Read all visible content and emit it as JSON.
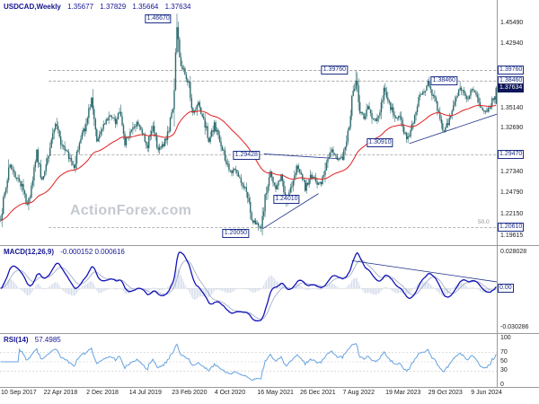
{
  "watermark": "ActionForex.com",
  "colors": {
    "candle": "#2e6b6f",
    "ma": "#e02020",
    "macd": "#1414b8",
    "macd_signal": "#9aa6c6",
    "macd_hist": "#ccd6e6",
    "rsi": "#66a3e0",
    "annotation": "#1c2f86",
    "price_box_bg": "#0d1559",
    "watermark": "#c5c9d1",
    "separator": "#999999",
    "dash": "#8c8c8c",
    "guide": "#c9c9c9",
    "text": "#222222",
    "header": "#161694"
  },
  "chart_data": {
    "type": "candlestick",
    "symbol": "USDCAD,Weekly",
    "ohlc": {
      "open": "1.35677",
      "high": "1.37829",
      "low": "1.35664",
      "close": "1.37634"
    },
    "x_axis": {
      "labels": [
        "10 Sep 2017",
        "22 Apr 2018",
        "2 Dec 2018",
        "14 Jul 2019",
        "23 Feb 2020",
        "4 Oct 2020",
        "16 May 2021",
        "26 Dec 2021",
        "7 Aug 2022",
        "19 Mar 2023",
        "29 Oct 2023",
        "9 Jun 2024"
      ],
      "week_step": 32,
      "weeks_total": 372
    },
    "price_panel": {
      "ylim": [
        1.188,
        1.468
      ],
      "ticks": [
        "1.45490",
        "1.42940",
        "1.35140",
        "1.32690",
        "1.27340",
        "1.24790",
        "1.22150",
        "1.19615"
      ],
      "levels": [
        {
          "price": 1.3976,
          "label": "1.39760"
        },
        {
          "price": 1.3846,
          "label": "1.38460"
        },
        {
          "price": 1.2947,
          "label": "1.29470"
        },
        {
          "price": 1.2061,
          "label": "1.20610",
          "note": "50.0"
        }
      ],
      "level_start_week": 36,
      "current": {
        "price": 1.37634,
        "label": "1.37634"
      },
      "annotations": [
        {
          "week": 118,
          "price": 1.46,
          "text": "1.46670"
        },
        {
          "week": 250,
          "price": 1.3976,
          "text": "1.39760"
        },
        {
          "week": 332,
          "price": 1.3846,
          "text": "1.38460"
        },
        {
          "week": 184,
          "price": 1.2945,
          "text": "1.29428"
        },
        {
          "week": 284,
          "price": 1.3091,
          "text": "1.30910"
        },
        {
          "week": 214,
          "price": 1.2401,
          "text": "1.24010"
        },
        {
          "week": 176,
          "price": 1.1985,
          "text": "1.20050"
        }
      ],
      "trendlines": [
        [
          196,
          1.2045,
          238,
          1.2475
        ],
        [
          197,
          1.2958,
          253,
          1.29
        ],
        [
          306,
          1.3085,
          372,
          1.3445
        ]
      ],
      "ma_period": 60,
      "seed": 20,
      "pins": [
        {
          "week": 132,
          "high": 1.4667
        },
        {
          "week": 195,
          "low": 1.2005
        },
        {
          "week": 266,
          "high": 1.3977
        },
        {
          "week": 305,
          "low": 1.3091
        },
        {
          "week": 344,
          "high": 1.3846
        },
        {
          "week": 363,
          "low": 1.344
        }
      ],
      "price_path": [
        [
          0,
          1.216
        ],
        [
          3,
          1.248
        ],
        [
          7,
          1.283
        ],
        [
          11,
          1.27
        ],
        [
          16,
          1.257
        ],
        [
          20,
          1.231
        ],
        [
          24,
          1.26
        ],
        [
          27,
          1.299
        ],
        [
          31,
          1.262
        ],
        [
          36,
          1.297
        ],
        [
          41,
          1.332
        ],
        [
          46,
          1.306
        ],
        [
          51,
          1.291
        ],
        [
          55,
          1.281
        ],
        [
          60,
          1.318
        ],
        [
          64,
          1.331
        ],
        [
          68,
          1.363
        ],
        [
          72,
          1.314
        ],
        [
          77,
          1.33
        ],
        [
          82,
          1.342
        ],
        [
          86,
          1.335
        ],
        [
          89,
          1.351
        ],
        [
          93,
          1.309
        ],
        [
          98,
          1.326
        ],
        [
          102,
          1.334
        ],
        [
          106,
          1.322
        ],
        [
          110,
          1.306
        ],
        [
          114,
          1.329
        ],
        [
          118,
          1.3
        ],
        [
          122,
          1.307
        ],
        [
          126,
          1.324
        ],
        [
          129,
          1.352
        ],
        [
          132,
          1.452
        ],
        [
          134,
          1.41
        ],
        [
          137,
          1.398
        ],
        [
          141,
          1.38
        ],
        [
          144,
          1.343
        ],
        [
          148,
          1.357
        ],
        [
          152,
          1.34
        ],
        [
          156,
          1.311
        ],
        [
          160,
          1.331
        ],
        [
          164,
          1.313
        ],
        [
          168,
          1.291
        ],
        [
          172,
          1.274
        ],
        [
          176,
          1.276
        ],
        [
          180,
          1.263
        ],
        [
          184,
          1.251
        ],
        [
          188,
          1.214
        ],
        [
          192,
          1.211
        ],
        [
          195,
          1.206
        ],
        [
          198,
          1.246
        ],
        [
          202,
          1.275
        ],
        [
          206,
          1.253
        ],
        [
          210,
          1.268
        ],
        [
          214,
          1.238
        ],
        [
          218,
          1.256
        ],
        [
          222,
          1.284
        ],
        [
          225,
          1.272
        ],
        [
          228,
          1.253
        ],
        [
          232,
          1.268
        ],
        [
          236,
          1.263
        ],
        [
          240,
          1.257
        ],
        [
          244,
          1.287
        ],
        [
          248,
          1.303
        ],
        [
          252,
          1.289
        ],
        [
          256,
          1.292
        ],
        [
          260,
          1.322
        ],
        [
          263,
          1.363
        ],
        [
          266,
          1.386
        ],
        [
          269,
          1.349
        ],
        [
          272,
          1.34
        ],
        [
          275,
          1.355
        ],
        [
          278,
          1.341
        ],
        [
          281,
          1.337
        ],
        [
          284,
          1.347
        ],
        [
          287,
          1.374
        ],
        [
          290,
          1.364
        ],
        [
          293,
          1.349
        ],
        [
          296,
          1.337
        ],
        [
          299,
          1.344
        ],
        [
          302,
          1.321
        ],
        [
          305,
          1.314
        ],
        [
          308,
          1.331
        ],
        [
          311,
          1.351
        ],
        [
          314,
          1.365
        ],
        [
          317,
          1.371
        ],
        [
          320,
          1.385
        ],
        [
          323,
          1.369
        ],
        [
          326,
          1.357
        ],
        [
          329,
          1.338
        ],
        [
          332,
          1.323
        ],
        [
          335,
          1.334
        ],
        [
          338,
          1.351
        ],
        [
          341,
          1.36
        ],
        [
          344,
          1.377
        ],
        [
          347,
          1.366
        ],
        [
          350,
          1.363
        ],
        [
          353,
          1.373
        ],
        [
          356,
          1.367
        ],
        [
          359,
          1.355
        ],
        [
          363,
          1.346
        ],
        [
          366,
          1.353
        ],
        [
          369,
          1.363
        ],
        [
          371,
          1.372
        ]
      ]
    },
    "macd_panel": {
      "label": "MACD(12,26,9)",
      "values": "-0.000152 0.000616",
      "ylim": [
        -0.030286,
        0.028028
      ],
      "axis": [
        "0.028028",
        "0.00",
        "-0.030286"
      ],
      "fast": 12,
      "slow": 26,
      "signal": 9,
      "trendline": [
        263,
        0.0205,
        372,
        0.0048
      ]
    },
    "rsi_panel": {
      "label": "RSI(14)",
      "value": "57.4985",
      "period": 14,
      "ticks": [
        100,
        70,
        50,
        30,
        0
      ],
      "guides": [
        70,
        50,
        30
      ]
    }
  }
}
